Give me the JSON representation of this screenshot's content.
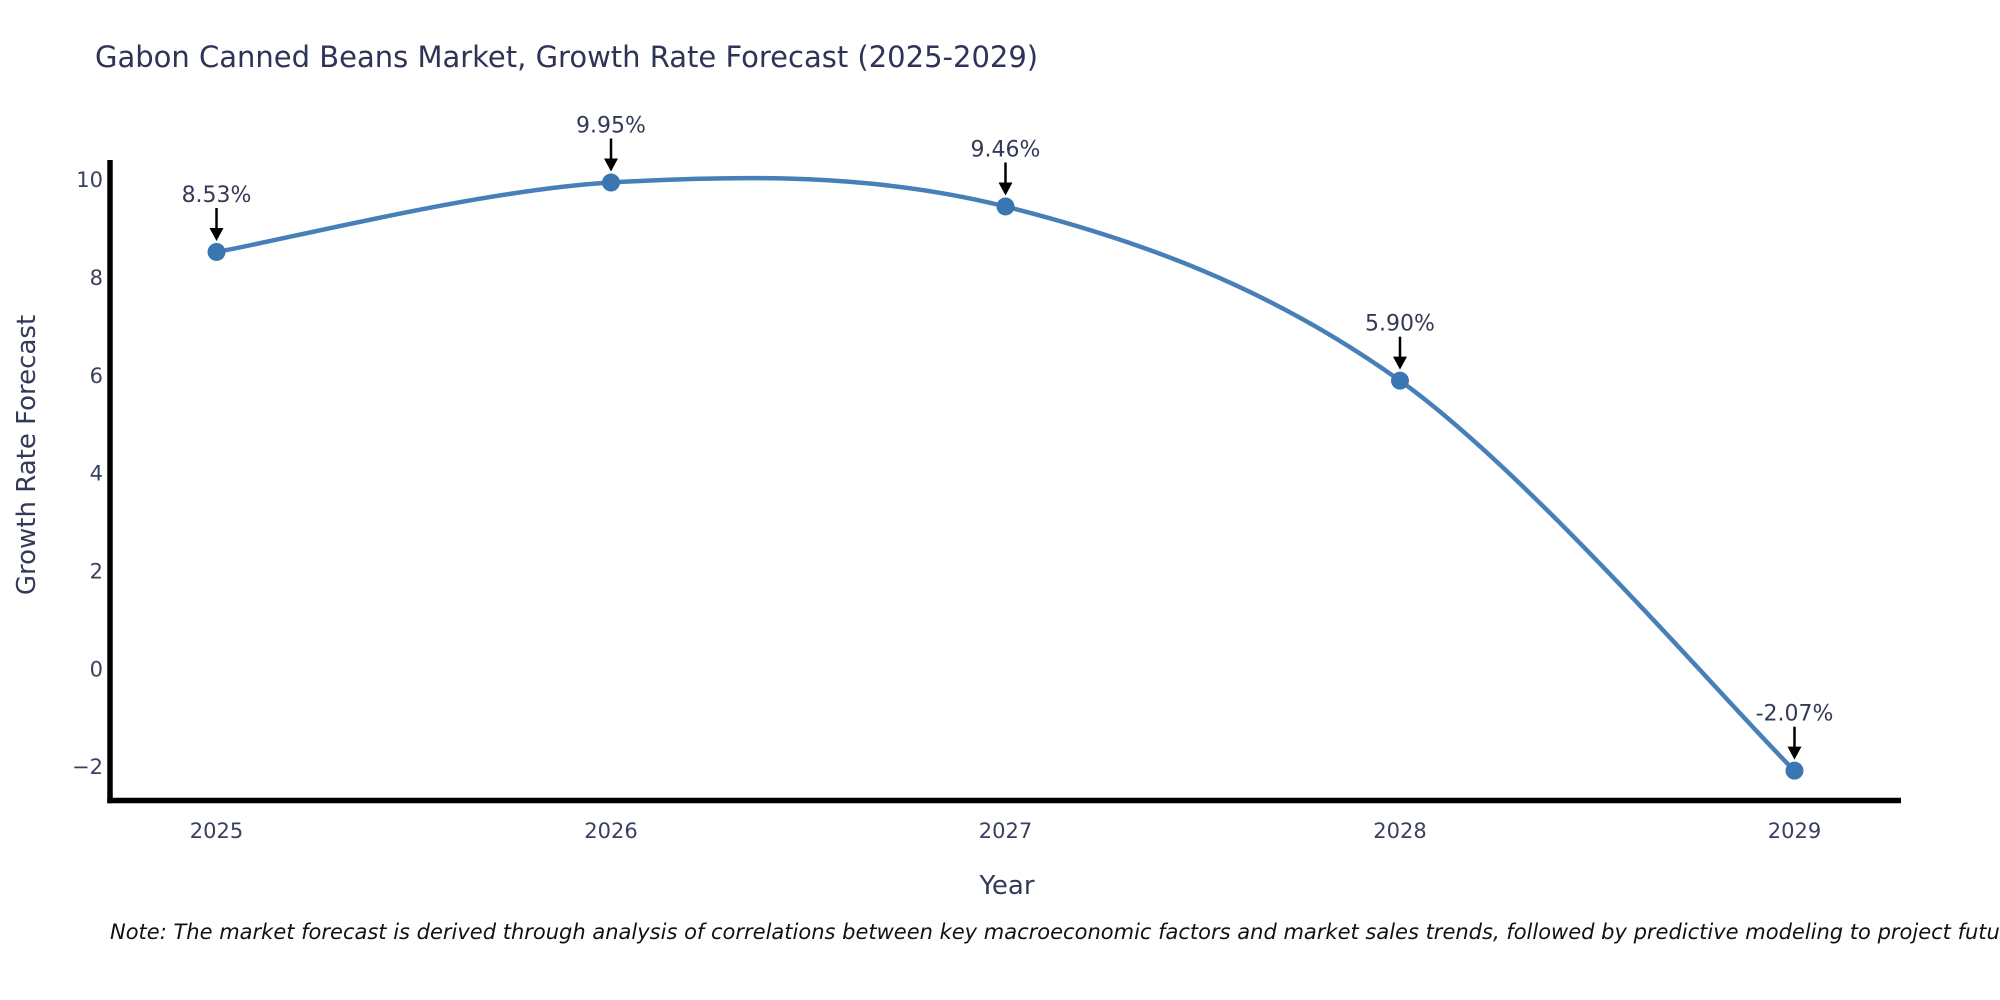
{
  "title": "Gabon Canned Beans Market, Growth Rate Forecast (2025-2029)",
  "note": "Note: The market forecast is derived through analysis of correlations between key macroeconomic factors and market sales trends, followed by predictive modeling to project future sales",
  "chart_data": {
    "type": "line",
    "title": "Gabon Canned Beans Market, Growth Rate Forecast (2025-2029)",
    "xlabel": "Year",
    "ylabel": "Growth Rate Forecast",
    "x": [
      2025,
      2026,
      2027,
      2028,
      2029
    ],
    "y": [
      8.53,
      9.95,
      9.46,
      5.9,
      -2.07
    ],
    "point_labels": [
      "8.53%",
      "9.95%",
      "9.46%",
      "5.90%",
      "-2.07%"
    ],
    "xticks": [
      2025,
      2026,
      2027,
      2028,
      2029
    ],
    "yticks": [
      10,
      8,
      6,
      4,
      2,
      0,
      -2
    ],
    "xlim": [
      2024.73,
      2029.27
    ],
    "ylim": [
      -2.68,
      10.41
    ],
    "grid": false,
    "line_shape": "spline",
    "legend": "none",
    "colors": {
      "line": "#477fb8",
      "marker": "#3a76b0",
      "axis": "#000000",
      "tick_text": "#3a4160",
      "title_text": "#2e3456",
      "annotation_text": "#343a56",
      "annotation_arrow": "#000000",
      "background": "#ffffff"
    }
  }
}
